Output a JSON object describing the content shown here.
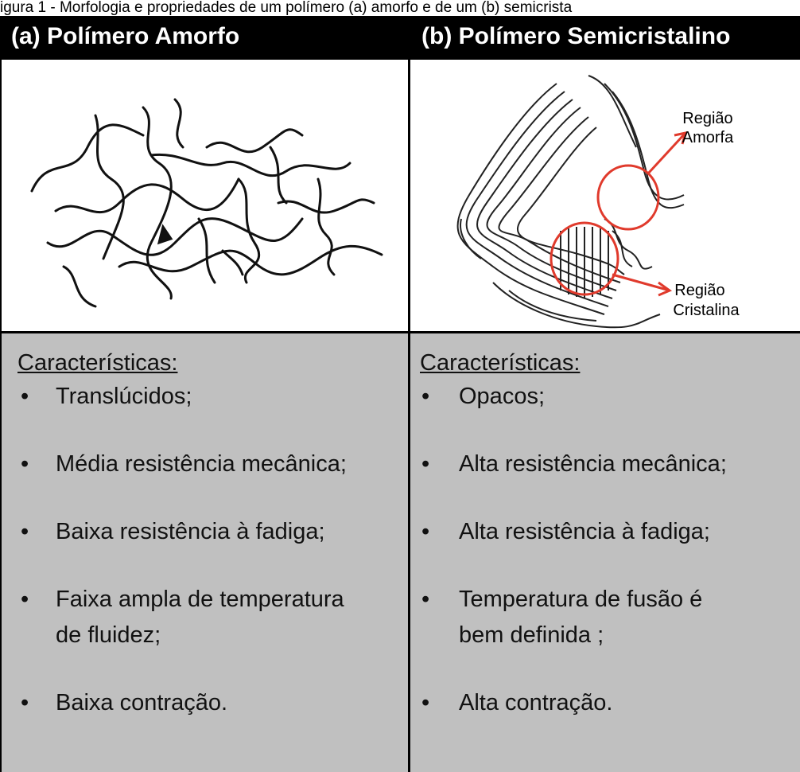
{
  "caption": "igura 1 - Morfologia e propriedades de um polímero (a) amorfo e de um (b) semicrista",
  "columns": [
    {
      "title": "(a) Polímero Amorfo",
      "heading": "Características:",
      "items": [
        [
          "Translúcidos;"
        ],
        [
          "Média resistência mecânica;"
        ],
        [
          "Baixa resistência à fadiga;"
        ],
        [
          "Faixa ampla de temperatura",
          "de fluidez;"
        ],
        [
          "Baixa contração."
        ]
      ]
    },
    {
      "title": "(b) Polímero Semicristalino",
      "labels": [
        [
          "Região",
          "Amorfa"
        ],
        [
          "Região",
          "Cristalina"
        ]
      ],
      "heading": "Características:",
      "items": [
        [
          "Opacos;"
        ],
        [
          "Alta resistência mecânica;"
        ],
        [
          "Alta resistência à fadiga;"
        ],
        [
          "Temperatura de fusão é",
          "bem definida ;"
        ],
        [
          "Alta contração."
        ]
      ]
    }
  ]
}
